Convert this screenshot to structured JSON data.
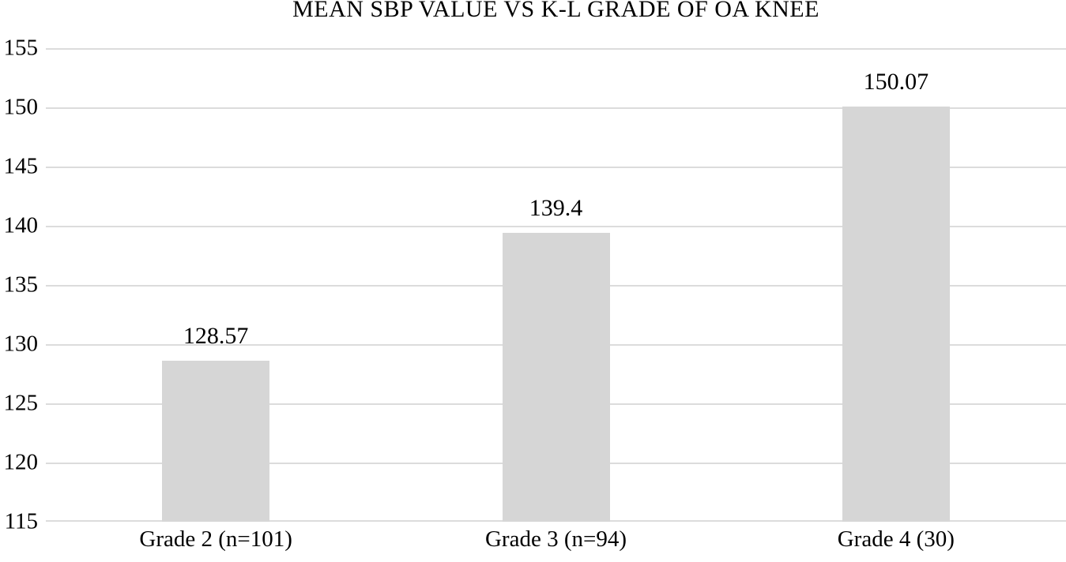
{
  "chart_data": {
    "type": "bar",
    "title": "MEAN SBP VALUE VS K-L GRADE OF OA KNEE",
    "categories": [
      "Grade 2 (n=101)",
      "Grade 3 (n=94)",
      "Grade 4 (30)"
    ],
    "values": [
      128.57,
      139.4,
      150.07
    ],
    "value_labels": [
      "128.57",
      "139.4",
      "150.07"
    ],
    "xlabel": "",
    "ylabel": "",
    "ylim": [
      115,
      155
    ],
    "yticks": [
      115,
      120,
      125,
      130,
      135,
      140,
      145,
      150,
      155
    ],
    "grid": "horizontal",
    "legend_position": "none",
    "bar_color": "#d6d6d6",
    "gridline_color": "#dcdcdc",
    "text_color": "#000000",
    "background_color": "#ffffff"
  }
}
